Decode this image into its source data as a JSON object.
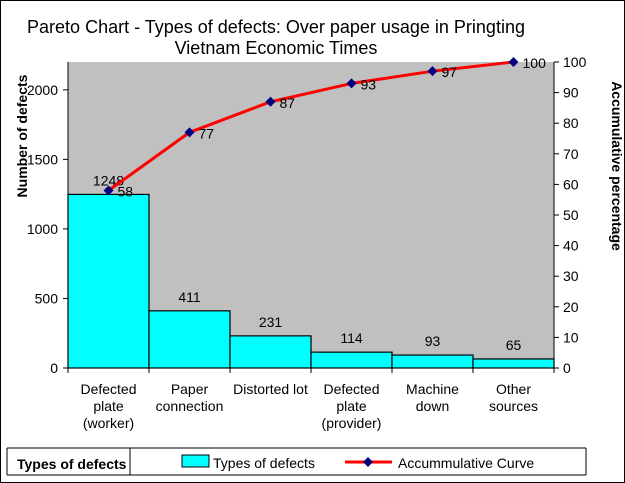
{
  "chart_data": {
    "type": "bar",
    "title": "Pareto Chart - Types of defects: Over paper usage in Pringting Vietnam Economic Times",
    "title_lines": [
      "Pareto Chart - Types of defects: Over paper usage in Pringting",
      "Vietnam Economic Times"
    ],
    "xlabel": "Types of defects",
    "ylabel": "Number of defects",
    "y2label": "Accumulative percentage",
    "categories": [
      [
        "Defected",
        "plate",
        "(worker)"
      ],
      [
        "Paper",
        "connection"
      ],
      [
        "Distorted lot"
      ],
      [
        "Defected",
        "plate",
        "(provider)"
      ],
      [
        "Machine",
        "down"
      ],
      [
        "Other",
        "sources"
      ]
    ],
    "series": [
      {
        "name": "Types of defects",
        "type": "bar",
        "axis": "left",
        "color": "#00FFFF",
        "values": [
          1248,
          411,
          231,
          114,
          93,
          65
        ]
      },
      {
        "name": "Accummulative  Curve",
        "type": "line",
        "axis": "right",
        "color": "#FF0000",
        "marker_color": "#000080",
        "values": [
          58,
          77,
          87,
          93,
          97,
          100
        ]
      }
    ],
    "ylim": [
      0,
      2200
    ],
    "y_ticks": [
      0,
      500,
      1000,
      1500,
      2000
    ],
    "y2lim": [
      0,
      100
    ],
    "y2_ticks": [
      0,
      10,
      20,
      30,
      40,
      50,
      60,
      70,
      80,
      90,
      100
    ],
    "plot_background": "#C0C0C0",
    "grid": false,
    "legend_position": "bottom"
  }
}
